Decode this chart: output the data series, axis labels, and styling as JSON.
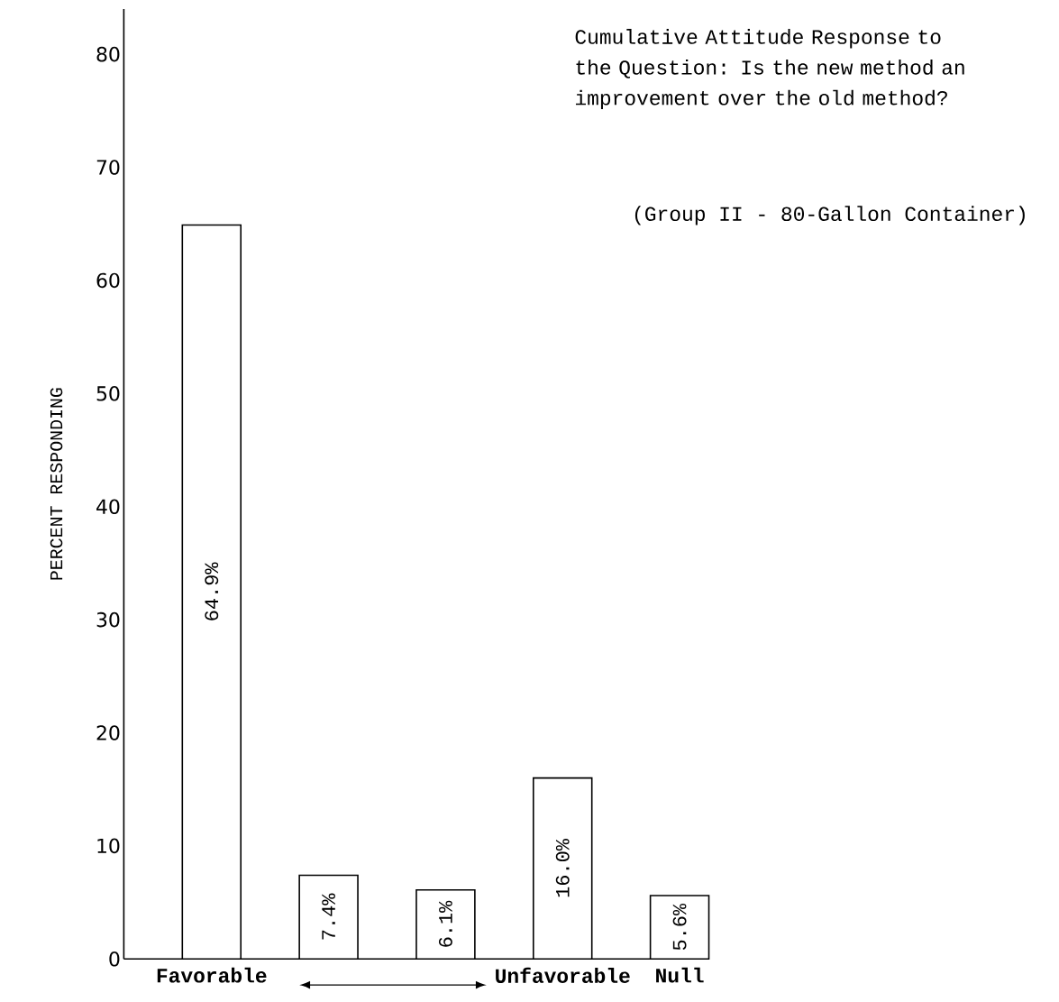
{
  "chart_data": {
    "type": "bar",
    "title": "Cumulative Attitude Response to the Question: Is the new method an improvement over the old method?",
    "subtitle": "(Group II - 80-Gallon Container)",
    "ylabel": "PERCENT RESPONDING",
    "categories": [
      "Favorable",
      null,
      null,
      "Unfavorable",
      "Null"
    ],
    "values": [
      64.9,
      7.4,
      6.1,
      16.0,
      5.6
    ],
    "value_labels": [
      "64.9%",
      "7.4%",
      "6.1%",
      "16.0%",
      "5.6%"
    ],
    "color": "#ffffff",
    "ylim": [
      0,
      84
    ],
    "yticks": [
      0,
      10,
      20,
      30,
      40,
      50,
      60,
      70,
      80
    ],
    "grid": false
  }
}
